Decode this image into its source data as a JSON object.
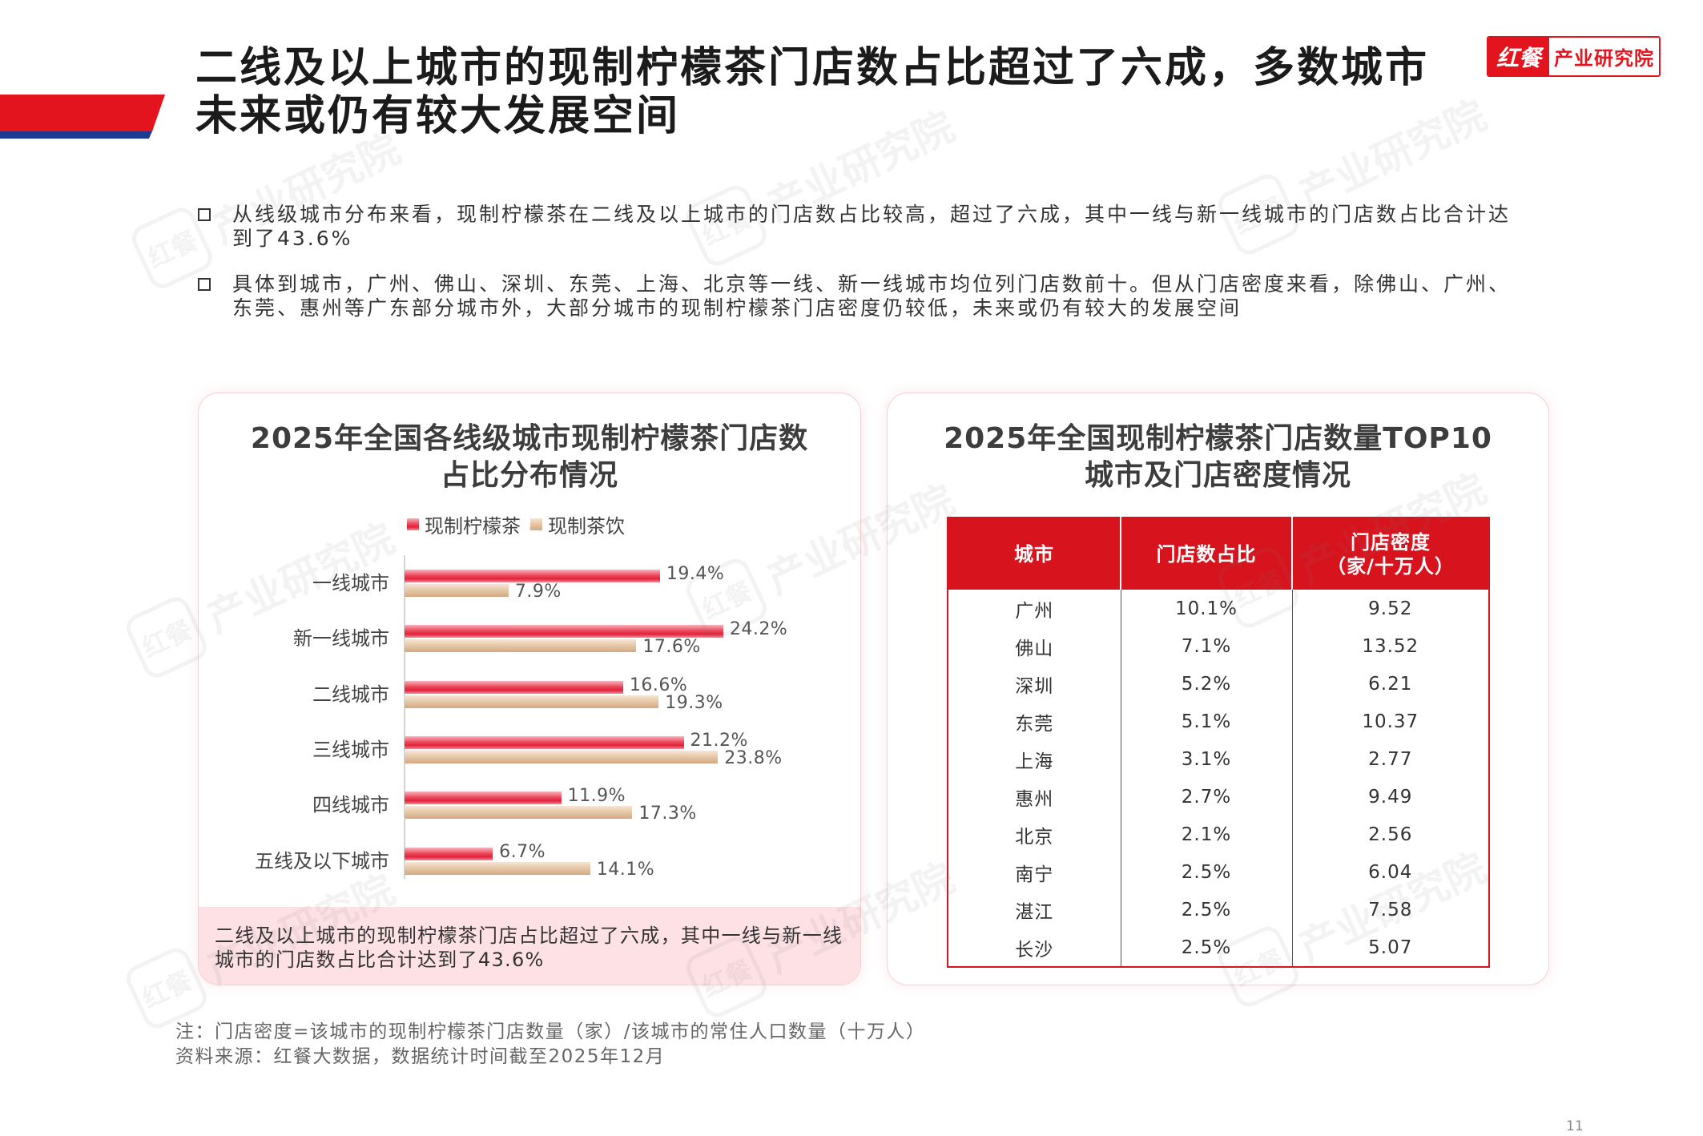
{
  "title_lines": [
    "二线及以上城市的现制柠檬茶门店数占比超过了六成，多数城市",
    "未来或仍有较大发展空间"
  ],
  "logo": {
    "brand": "红餐",
    "name": "产业研究院"
  },
  "watermark": {
    "brand": "红餐",
    "name": "产业研究院"
  },
  "icons": {
    "bullet": "square-bullet-icon"
  },
  "colors": {
    "accent_red": "#e4141e",
    "navy": "#1f3a93",
    "bar_lemon_tea": "#e83a4f",
    "bar_tea_drink": "#dcb691",
    "callout_bg": "#fde1e5"
  },
  "bullets": [
    [
      "从线级城市分布来看，现制柠檬茶在二线及以上城市的门店数占比较高，超过了六成，其中一线与新一线城市的门店数占比合计达",
      "到了43.6%"
    ],
    [
      "具体到城市，广州、佛山、深圳、东莞、上海、北京等一线、新一线城市均位列门店数前十。但从门店密度来看，除佛山、广州、",
      "东莞、惠州等广东部分城市外，大部分城市的现制柠檬茶门店密度仍较低，未来或仍有较大的发展空间"
    ]
  ],
  "chart_data": [
    {
      "type": "bar",
      "orientation": "horizontal",
      "title_lines": [
        "2025年全国各线级城市现制柠檬茶门店数",
        "占比分布情况"
      ],
      "legend": "top",
      "grid": false,
      "unit": "%",
      "categories": [
        "一线城市",
        "新一线城市",
        "二线城市",
        "三线城市",
        "四线城市",
        "五线及以下城市"
      ],
      "series": [
        {
          "name": "现制柠檬茶",
          "values": [
            19.4,
            24.2,
            16.6,
            21.2,
            11.9,
            6.7
          ]
        },
        {
          "name": "现制茶饮",
          "values": [
            7.9,
            17.6,
            19.3,
            23.8,
            17.3,
            14.1
          ]
        }
      ]
    },
    {
      "type": "table",
      "title_lines": [
        "2025年全国现制柠檬茶门店数量TOP10",
        "城市及门店密度情况"
      ],
      "columns": [
        {
          "label": "城市"
        },
        {
          "label": "门店数占比"
        },
        {
          "label": "门店密度",
          "unit": "（家/十万人）"
        }
      ],
      "rows": [
        [
          "广州",
          "10.1%",
          "9.52"
        ],
        [
          "佛山",
          "7.1%",
          "13.52"
        ],
        [
          "深圳",
          "5.2%",
          "6.21"
        ],
        [
          "东莞",
          "5.1%",
          "10.37"
        ],
        [
          "上海",
          "3.1%",
          "2.77"
        ],
        [
          "惠州",
          "2.7%",
          "9.49"
        ],
        [
          "北京",
          "2.1%",
          "2.56"
        ],
        [
          "南宁",
          "2.5%",
          "6.04"
        ],
        [
          "湛江",
          "2.5%",
          "7.58"
        ],
        [
          "长沙",
          "2.5%",
          "5.07"
        ]
      ]
    }
  ],
  "callout_lines": [
    "二线及以上城市的现制柠檬茶门店占比超过了六成，其中一线与新一线",
    "城市的门店数占比合计达到了43.6%"
  ],
  "notes": [
    "注：门店密度=该城市的现制柠檬茶门店数量（家）/该城市的常住人口数量（十万人）",
    "资料来源：红餐大数据，数据统计时间截至2025年12月"
  ],
  "page_number": "11"
}
